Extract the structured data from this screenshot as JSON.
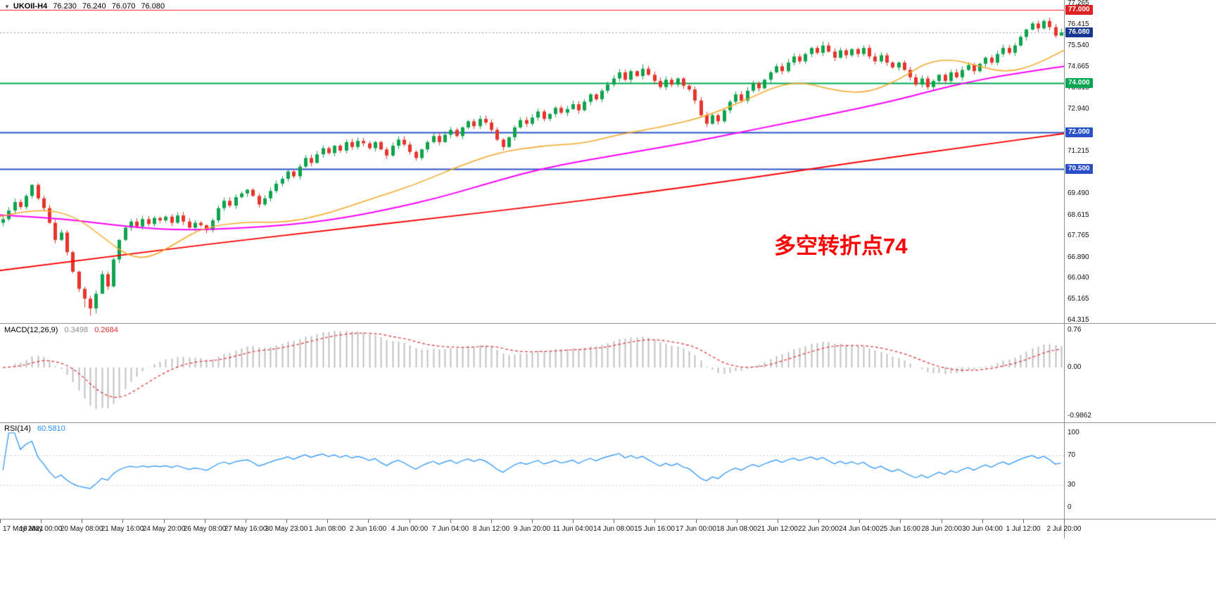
{
  "quote": {
    "symbol_period": "UKOIl-H4",
    "open": "76.230",
    "high": "76.240",
    "low": "76.070",
    "close": "76.080"
  },
  "annotation": {
    "text": "多空转折点74",
    "color": "#FF0000"
  },
  "chart_data": [
    {
      "type": "candlestick",
      "symbol": "UKOIl",
      "timeframe": "H4",
      "x_axis": {
        "labels": [
          "17 May 2021",
          "19 May 00:00",
          "20 May 08:00",
          "21 May 16:00",
          "24 May 20:00",
          "26 May 08:00",
          "27 May 16:00",
          "30 May 23:00",
          "1 Jun 08:00",
          "2 Jun 16:00",
          "4 Jun 00:00",
          "7 Jun 04:00",
          "8 Jun 12:00",
          "9 Jun 20:00",
          "11 Jun 04:00",
          "14 Jun 08:00",
          "15 Jun 16:00",
          "17 Jun 00:00",
          "18 Jun 08:00",
          "21 Jun 12:00",
          "22 Jun 20:00",
          "24 Jun 04:00",
          "25 Jun 16:00",
          "28 Jun 20:00",
          "30 Jun 04:00",
          "1 Jul 12:00",
          "2 Jul 20:00"
        ]
      },
      "y_axis": {
        "range": [
          64.315,
          77.265
        ],
        "ticks": [
          "77.265",
          "76.415",
          "75.540",
          "74.665",
          "73.815",
          "72.940",
          "71.215",
          "70.365",
          "69.490",
          "68.615",
          "67.765",
          "66.890",
          "66.040",
          "65.165",
          "64.315"
        ]
      },
      "price_labels": [
        {
          "label": "77.000",
          "price": 77.0,
          "bg": "#E02020"
        },
        {
          "label": "76.080",
          "price": 76.08,
          "bg": "#16368F"
        },
        {
          "label": "74.000",
          "price": 74.0,
          "bg": "#00A651"
        },
        {
          "label": "72.000",
          "price": 72.0,
          "bg": "#2A50C8"
        },
        {
          "label": "70.500",
          "price": 70.5,
          "bg": "#2A50C8"
        }
      ],
      "hlines": [
        {
          "price": 77.0,
          "color": "#FF1F1F",
          "width": 1
        },
        {
          "price": 76.08,
          "color": "#8C9BB5",
          "width": 1,
          "dash": [
            2,
            3
          ]
        },
        {
          "price": 74.0,
          "color": "#00A651",
          "width": 2
        },
        {
          "price": 72.0,
          "color": "#2A50C8",
          "width": 2
        },
        {
          "price": 70.5,
          "color": "#2A50C8",
          "width": 2
        }
      ],
      "candle_colors": {
        "up": "#0FA34C",
        "down": "#E8352C"
      },
      "first_open": 68.3,
      "closes": [
        68.45,
        68.8,
        69.15,
        68.95,
        69.4,
        69.85,
        69.3,
        68.9,
        68.3,
        67.6,
        67.9,
        67.1,
        66.3,
        65.6,
        65.2,
        64.8,
        65.4,
        66.2,
        65.7,
        66.8,
        67.6,
        68.1,
        68.35,
        68.15,
        68.45,
        68.25,
        68.5,
        68.4,
        68.55,
        68.3,
        68.6,
        68.35,
        68.1,
        68.3,
        68.2,
        68.0,
        68.4,
        68.9,
        69.2,
        69.0,
        69.35,
        69.5,
        69.65,
        69.4,
        69.05,
        69.3,
        69.6,
        69.9,
        70.1,
        70.4,
        70.2,
        70.6,
        70.95,
        70.75,
        71.1,
        71.35,
        71.15,
        71.45,
        71.25,
        71.6,
        71.4,
        71.65,
        71.55,
        71.35,
        71.6,
        71.3,
        71.05,
        71.45,
        71.7,
        71.5,
        71.2,
        70.95,
        71.3,
        71.6,
        71.85,
        71.6,
        71.9,
        72.1,
        71.85,
        72.2,
        72.45,
        72.25,
        72.55,
        72.4,
        72.1,
        71.7,
        71.4,
        71.8,
        72.2,
        72.5,
        72.35,
        72.6,
        72.85,
        72.55,
        72.75,
        73.0,
        72.8,
        72.95,
        73.15,
        72.9,
        73.25,
        73.55,
        73.35,
        73.7,
        73.95,
        74.2,
        74.45,
        74.15,
        74.5,
        74.3,
        74.6,
        74.35,
        74.1,
        73.85,
        74.15,
        73.95,
        74.2,
        73.9,
        73.75,
        73.3,
        72.7,
        72.35,
        72.7,
        72.45,
        72.9,
        73.25,
        73.55,
        73.3,
        73.7,
        74.0,
        73.8,
        74.15,
        74.45,
        74.7,
        74.5,
        74.85,
        75.1,
        74.9,
        75.2,
        75.45,
        75.25,
        75.55,
        75.3,
        75.05,
        75.35,
        75.15,
        75.4,
        75.2,
        75.45,
        75.1,
        74.9,
        75.15,
        74.85,
        74.65,
        74.85,
        74.55,
        74.25,
        73.95,
        74.2,
        73.85,
        74.1,
        74.35,
        74.1,
        74.45,
        74.25,
        74.55,
        74.75,
        74.5,
        74.8,
        75.05,
        74.85,
        75.2,
        75.45,
        75.25,
        75.55,
        75.9,
        76.2,
        76.45,
        76.25,
        76.55,
        76.3,
        75.95,
        76.08
      ],
      "wick_overrides": {
        "14": {
          "low": 64.85
        },
        "15": {
          "low": 64.5
        },
        "16": {
          "low": 64.6
        },
        "17": {
          "low": 65.4
        },
        "110": {
          "high": 74.78
        },
        "141": {
          "high": 75.72
        },
        "177": {
          "high": 76.52
        },
        "179": {
          "high": 76.62
        },
        "182": {
          "high": 76.24,
          "low": 76.07
        }
      },
      "moving_averages": [
        {
          "name": "ma-slow",
          "color": "#FF0000",
          "width": 2,
          "points": [
            [
              0,
              66.35
            ],
            [
              0.1,
              66.9
            ],
            [
              0.2,
              67.45
            ],
            [
              0.3,
              67.95
            ],
            [
              0.4,
              68.45
            ],
            [
              0.5,
              68.95
            ],
            [
              0.6,
              69.5
            ],
            [
              0.7,
              70.1
            ],
            [
              0.8,
              70.75
            ],
            [
              0.9,
              71.35
            ],
            [
              1,
              71.95
            ]
          ]
        },
        {
          "name": "ma-medium",
          "color": "#FF00FF",
          "width": 2,
          "points": [
            [
              0,
              68.62
            ],
            [
              0.05,
              68.5
            ],
            [
              0.09,
              68.3
            ],
            [
              0.13,
              68.1
            ],
            [
              0.17,
              68.0
            ],
            [
              0.21,
              68.05
            ],
            [
              0.25,
              68.15
            ],
            [
              0.29,
              68.3
            ],
            [
              0.33,
              68.55
            ],
            [
              0.37,
              68.9
            ],
            [
              0.41,
              69.3
            ],
            [
              0.45,
              69.8
            ],
            [
              0.49,
              70.3
            ],
            [
              0.53,
              70.7
            ],
            [
              0.57,
              71.0
            ],
            [
              0.61,
              71.3
            ],
            [
              0.65,
              71.6
            ],
            [
              0.69,
              71.95
            ],
            [
              0.73,
              72.3
            ],
            [
              0.77,
              72.65
            ],
            [
              0.81,
              73.0
            ],
            [
              0.85,
              73.4
            ],
            [
              0.88,
              73.75
            ],
            [
              0.91,
              74.05
            ],
            [
              0.94,
              74.3
            ],
            [
              0.97,
              74.5
            ],
            [
              1,
              74.7
            ]
          ]
        },
        {
          "name": "ma-fast",
          "color": "#F5A623",
          "width": 1.5,
          "points": [
            [
              0,
              68.55
            ],
            [
              0.035,
              68.9
            ],
            [
              0.07,
              68.6
            ],
            [
              0.1,
              67.6
            ],
            [
              0.12,
              66.95
            ],
            [
              0.14,
              66.85
            ],
            [
              0.165,
              67.45
            ],
            [
              0.19,
              68.1
            ],
            [
              0.23,
              68.35
            ],
            [
              0.27,
              68.3
            ],
            [
              0.31,
              68.7
            ],
            [
              0.35,
              69.3
            ],
            [
              0.39,
              69.85
            ],
            [
              0.43,
              70.6
            ],
            [
              0.47,
              71.2
            ],
            [
              0.51,
              71.45
            ],
            [
              0.55,
              71.55
            ],
            [
              0.58,
              71.9
            ],
            [
              0.62,
              72.2
            ],
            [
              0.66,
              72.6
            ],
            [
              0.7,
              73.3
            ],
            [
              0.73,
              73.9
            ],
            [
              0.755,
              74.05
            ],
            [
              0.785,
              73.7
            ],
            [
              0.815,
              73.6
            ],
            [
              0.845,
              74.15
            ],
            [
              0.87,
              74.85
            ],
            [
              0.895,
              75.0
            ],
            [
              0.92,
              74.7
            ],
            [
              0.945,
              74.45
            ],
            [
              0.97,
              74.7
            ],
            [
              1,
              75.35
            ]
          ]
        }
      ]
    },
    {
      "type": "macd",
      "label": "MACD(12,26,9)",
      "macd_value": "0.3498",
      "signal_value": "0.2684",
      "params": [
        12,
        26,
        9
      ],
      "y_ticks": [
        "0.76",
        "0.00",
        "-0.9862"
      ],
      "y_tick_values": [
        0.76,
        0,
        -0.9862
      ],
      "y_range": [
        -0.9862,
        0.76
      ],
      "histogram_color": "#BFBFBF",
      "signal_color": "#E03030",
      "signal_dash": [
        4,
        3
      ]
    },
    {
      "type": "rsi",
      "label": "RSI(14)",
      "value": "60.5810",
      "period": 14,
      "y_ticks": [
        "100",
        "70",
        "30",
        "0"
      ],
      "y_tick_values": [
        100,
        70,
        30,
        0
      ],
      "levels": [
        70,
        30
      ],
      "line_color": "#1E90FF",
      "level_color": "#C8C8C8"
    }
  ]
}
